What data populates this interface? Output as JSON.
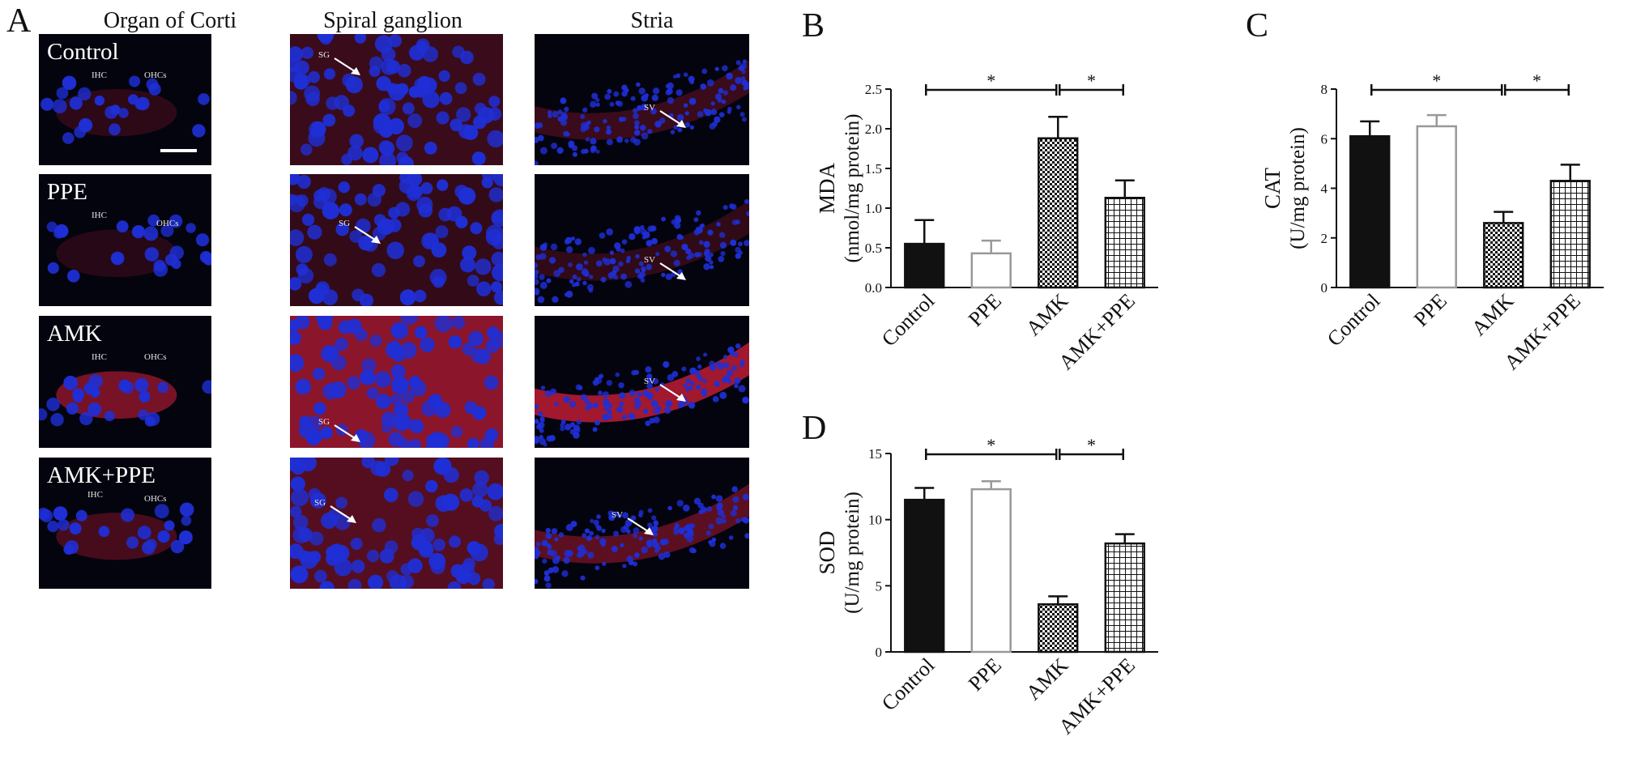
{
  "figure": {
    "panel_letters": [
      "A",
      "B",
      "C",
      "D"
    ]
  },
  "micrographs": {
    "columns": [
      "Organ of Corti",
      "Spiral ganglion",
      "Stria"
    ],
    "rows": [
      {
        "label": "Control",
        "intensity": 0.18
      },
      {
        "label": "PPE",
        "intensity": 0.12
      },
      {
        "label": "AMK",
        "intensity": 0.85
      },
      {
        "label": "AMK+PPE",
        "intensity": 0.4
      }
    ],
    "cell_labels": {
      "ihc": "IHC",
      "ohcs": "OHCs",
      "sg": "SG",
      "sv": "SV"
    },
    "colors": {
      "nuclei": "#1f2fd6",
      "signal": "#e0203c",
      "background": "#04040f"
    }
  },
  "chart_data": [
    {
      "panel": "B",
      "type": "bar",
      "ylabel_line1": "MDA",
      "ylabel_line2": "(nmol/mg protein)",
      "categories": [
        "Control",
        "PPE",
        "AMK",
        "AMK+PPE"
      ],
      "values": [
        0.55,
        0.43,
        1.88,
        1.13
      ],
      "errors": [
        0.3,
        0.16,
        0.27,
        0.22
      ],
      "ylim": [
        0,
        2.5
      ],
      "yticks": [
        "0.0",
        "0.5",
        "1.0",
        "1.5",
        "2.0",
        "2.5"
      ],
      "fills": [
        "solid",
        "open",
        "checker",
        "grid"
      ],
      "significance": [
        {
          "from": 0,
          "to": 2,
          "label": "*"
        },
        {
          "from": 2,
          "to": 3,
          "label": "*"
        }
      ]
    },
    {
      "panel": "C",
      "type": "bar",
      "ylabel_line1": "CAT",
      "ylabel_line2": "(U/mg protein)",
      "categories": [
        "Control",
        "PPE",
        "AMK",
        "AMK+PPE"
      ],
      "values": [
        6.1,
        6.5,
        2.6,
        4.3
      ],
      "errors": [
        0.6,
        0.45,
        0.45,
        0.65
      ],
      "ylim": [
        0,
        8
      ],
      "yticks": [
        "0",
        "2",
        "4",
        "6",
        "8"
      ],
      "fills": [
        "solid",
        "open",
        "checker",
        "grid"
      ],
      "significance": [
        {
          "from": 0,
          "to": 2,
          "label": "*"
        },
        {
          "from": 2,
          "to": 3,
          "label": "*"
        }
      ]
    },
    {
      "panel": "D",
      "type": "bar",
      "ylabel_line1": "SOD",
      "ylabel_line2": "(U/mg protein)",
      "categories": [
        "Control",
        "PPE",
        "AMK",
        "AMK+PPE"
      ],
      "values": [
        11.5,
        12.3,
        3.6,
        8.2
      ],
      "errors": [
        0.9,
        0.6,
        0.6,
        0.7
      ],
      "ylim": [
        0,
        15
      ],
      "yticks": [
        "0",
        "5",
        "10",
        "15"
      ],
      "fills": [
        "solid",
        "open",
        "checker",
        "grid"
      ],
      "significance": [
        {
          "from": 0,
          "to": 2,
          "label": "*"
        },
        {
          "from": 2,
          "to": 3,
          "label": "*"
        }
      ]
    }
  ]
}
